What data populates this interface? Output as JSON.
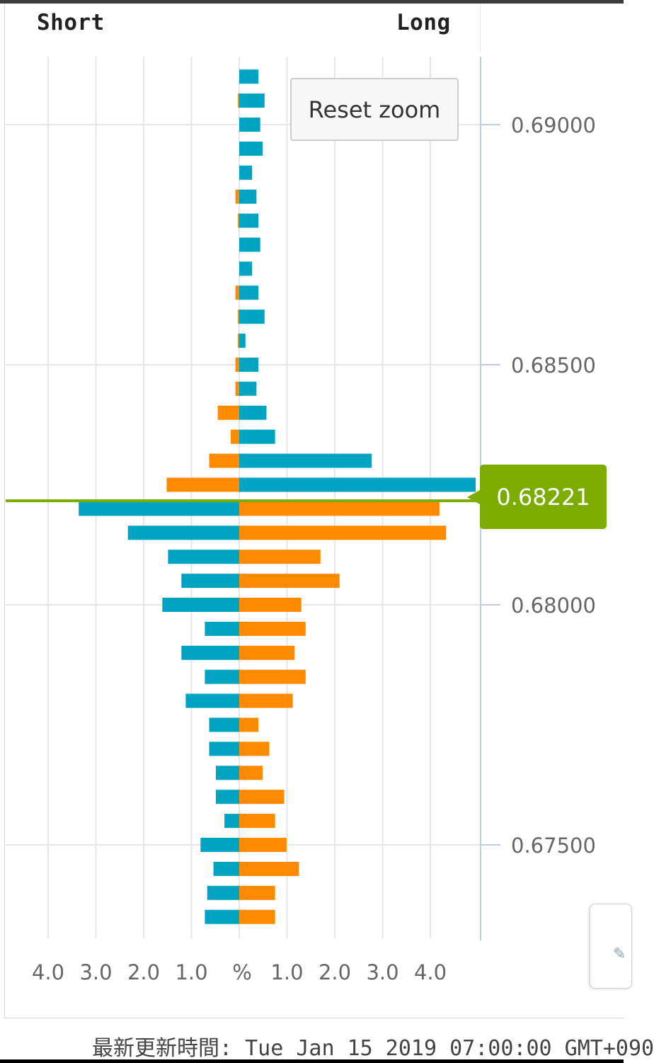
{
  "header": {
    "short_label": "Short",
    "long_label": "Long"
  },
  "reset_zoom_label": "Reset zoom",
  "current_price_label": "0.68221",
  "updated_text": "最新更新時間: Tue Jan 15 2019 07:00:00 GMT+090",
  "colors": {
    "long_pct_bar": "#00a3c2",
    "short_pct_bar": "#ff8a00",
    "current_price": "#7cac00",
    "grid": "#e6e6e6",
    "axis": "#c0cce0"
  },
  "chart_data": {
    "type": "bar",
    "orientation": "horizontal-diverging",
    "price_axis": {
      "ticks": [
        0.69,
        0.685,
        0.68,
        0.675
      ],
      "tick_labels": [
        "0.69000",
        "0.68500",
        "0.68000",
        "0.67500"
      ],
      "range": [
        0.6737,
        0.6912
      ]
    },
    "pct_axis": {
      "left_ticks": [
        "4.0",
        "3.0",
        "2.0",
        "1.0"
      ],
      "center_label": "%",
      "right_ticks": [
        "1.0",
        "2.0",
        "3.0",
        "4.0"
      ],
      "max": 5.0
    },
    "current_price": 0.68221,
    "levels": [
      {
        "price": 0.691,
        "left_orange": 0.0,
        "right_cyan": 0.4
      },
      {
        "price": 0.6905,
        "left_orange": 0.03,
        "right_cyan": 0.53
      },
      {
        "price": 0.69,
        "left_orange": 0.0,
        "right_cyan": 0.44
      },
      {
        "price": 0.6895,
        "left_orange": 0.0,
        "right_cyan": 0.49
      },
      {
        "price": 0.689,
        "left_orange": 0.0,
        "right_cyan": 0.27
      },
      {
        "price": 0.6885,
        "left_orange": 0.08,
        "right_cyan": 0.36
      },
      {
        "price": 0.688,
        "left_orange": 0.03,
        "right_cyan": 0.4
      },
      {
        "price": 0.6875,
        "left_orange": 0.0,
        "right_cyan": 0.44
      },
      {
        "price": 0.687,
        "left_orange": 0.0,
        "right_cyan": 0.27
      },
      {
        "price": 0.6865,
        "left_orange": 0.08,
        "right_cyan": 0.4
      },
      {
        "price": 0.686,
        "left_orange": 0.03,
        "right_cyan": 0.53
      },
      {
        "price": 0.6855,
        "left_orange": 0.03,
        "right_cyan": 0.13
      },
      {
        "price": 0.685,
        "left_orange": 0.08,
        "right_cyan": 0.4
      },
      {
        "price": 0.6845,
        "left_orange": 0.08,
        "right_cyan": 0.36
      },
      {
        "price": 0.684,
        "left_orange": 0.45,
        "right_cyan": 0.57
      },
      {
        "price": 0.6835,
        "left_orange": 0.18,
        "right_cyan": 0.75
      },
      {
        "price": 0.683,
        "left_orange": 0.63,
        "right_cyan": 2.77
      },
      {
        "price": 0.6825,
        "left_orange": 1.52,
        "right_cyan": 4.95
      },
      {
        "price": 0.682,
        "left_cyan": 3.36,
        "right_orange": 4.19
      },
      {
        "price": 0.6815,
        "left_cyan": 2.33,
        "right_orange": 4.33
      },
      {
        "price": 0.681,
        "left_cyan": 1.49,
        "right_orange": 1.7
      },
      {
        "price": 0.6805,
        "left_cyan": 1.21,
        "right_orange": 2.1
      },
      {
        "price": 0.68,
        "left_cyan": 1.61,
        "right_orange": 1.3
      },
      {
        "price": 0.6795,
        "left_cyan": 0.72,
        "right_orange": 1.39
      },
      {
        "price": 0.679,
        "left_cyan": 1.21,
        "right_orange": 1.16
      },
      {
        "price": 0.6785,
        "left_cyan": 0.72,
        "right_orange": 1.39
      },
      {
        "price": 0.678,
        "left_cyan": 1.12,
        "right_orange": 1.12
      },
      {
        "price": 0.6775,
        "left_cyan": 0.63,
        "right_orange": 0.4
      },
      {
        "price": 0.677,
        "left_cyan": 0.63,
        "right_orange": 0.63
      },
      {
        "price": 0.6765,
        "left_cyan": 0.49,
        "right_orange": 0.49
      },
      {
        "price": 0.676,
        "left_cyan": 0.49,
        "right_orange": 0.94
      },
      {
        "price": 0.6755,
        "left_cyan": 0.31,
        "right_orange": 0.75
      },
      {
        "price": 0.675,
        "left_cyan": 0.81,
        "right_orange": 0.99
      },
      {
        "price": 0.6745,
        "left_cyan": 0.54,
        "right_orange": 1.25
      },
      {
        "price": 0.674,
        "left_cyan": 0.67,
        "right_orange": 0.75
      },
      {
        "price": 0.6735,
        "left_cyan": 0.72,
        "right_orange": 0.75
      }
    ]
  }
}
